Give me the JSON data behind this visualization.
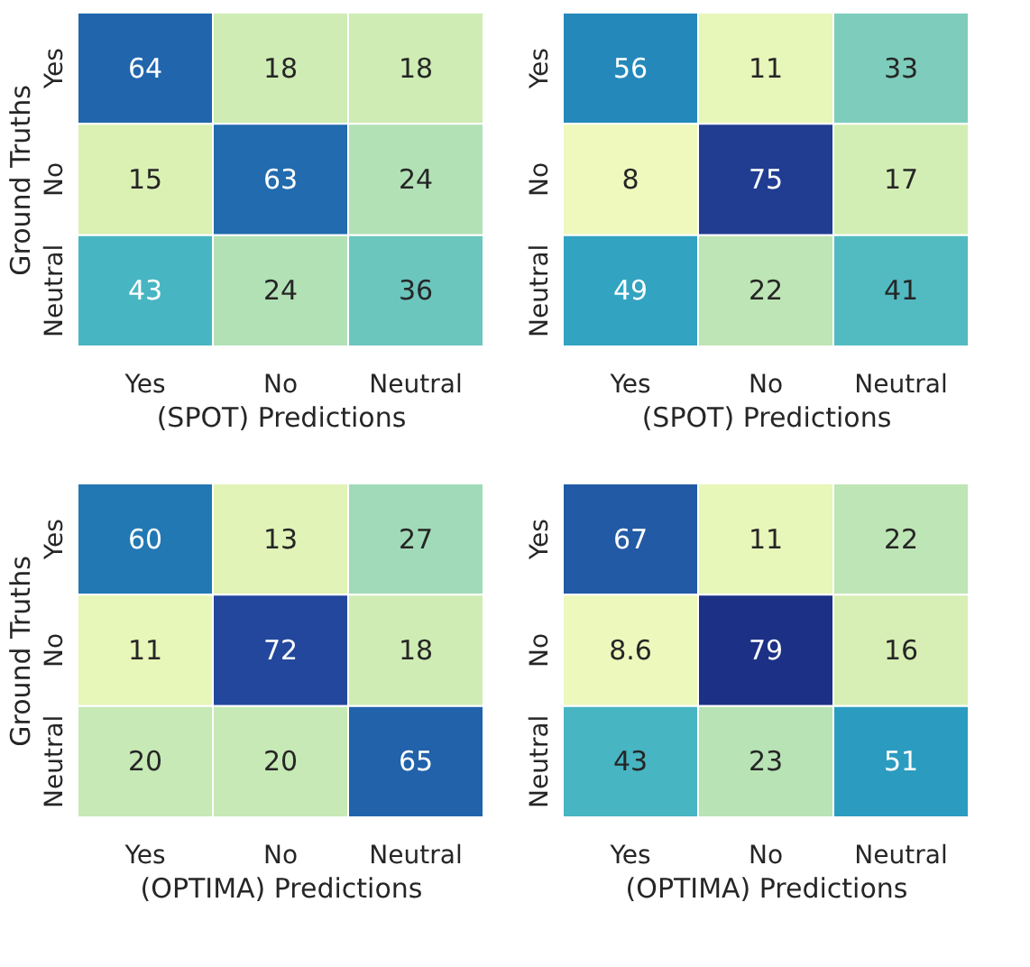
{
  "chart_data": [
    {
      "type": "heatmap",
      "xlabel": "(SPOT) Predictions",
      "ylabel": "Ground Truths",
      "categories": [
        "Yes",
        "No",
        "Neutral"
      ],
      "y_categories": [
        "Yes",
        "No",
        "Neutral"
      ],
      "cells": [
        [
          64,
          18,
          18
        ],
        [
          15,
          63,
          24
        ],
        [
          43,
          24,
          36
        ]
      ],
      "data_labels": true
    },
    {
      "type": "heatmap",
      "xlabel": "(SPOT) Predictions",
      "categories": [
        "Yes",
        "No",
        "Neutral"
      ],
      "y_categories": [
        "Yes",
        "No",
        "Neutral"
      ],
      "cells": [
        [
          56,
          11,
          33
        ],
        [
          8,
          75,
          17
        ],
        [
          49,
          22,
          41
        ]
      ],
      "data_labels": true
    },
    {
      "type": "heatmap",
      "xlabel": "(OPTIMA) Predictions",
      "ylabel": "Ground Truths",
      "categories": [
        "Yes",
        "No",
        "Neutral"
      ],
      "y_categories": [
        "Yes",
        "No",
        "Neutral"
      ],
      "cells": [
        [
          60,
          13,
          27
        ],
        [
          11,
          72,
          18
        ],
        [
          20,
          20,
          65
        ]
      ],
      "data_labels": true
    },
    {
      "type": "heatmap",
      "xlabel": "(OPTIMA) Predictions",
      "categories": [
        "Yes",
        "No",
        "Neutral"
      ],
      "y_categories": [
        "Yes",
        "No",
        "Neutral"
      ],
      "cells": [
        [
          67,
          11,
          22
        ],
        [
          8.6,
          79,
          16
        ],
        [
          43,
          23,
          51
        ]
      ],
      "data_labels": true
    }
  ]
}
